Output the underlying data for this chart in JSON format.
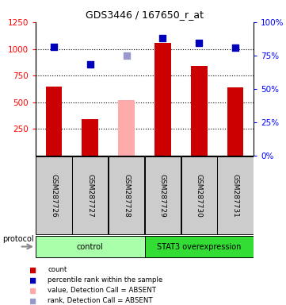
{
  "title": "GDS3446 / 167650_r_at",
  "samples": [
    "GSM287726",
    "GSM287727",
    "GSM287728",
    "GSM287729",
    "GSM287730",
    "GSM287731"
  ],
  "bar_values": [
    650,
    340,
    null,
    1060,
    840,
    640
  ],
  "bar_absent_values": [
    null,
    null,
    520,
    null,
    null,
    null
  ],
  "blue_squares_left": [
    1020,
    855,
    null,
    1100,
    1060,
    1010
  ],
  "blue_absent_left": [
    null,
    null,
    940,
    null,
    null,
    null
  ],
  "ylim_left": [
    0,
    1250
  ],
  "ylim_right": [
    0,
    100
  ],
  "yticks_left": [
    250,
    500,
    750,
    1000,
    1250
  ],
  "yticks_right": [
    0,
    25,
    50,
    75,
    100
  ],
  "dotted_levels": [
    250,
    500,
    750,
    1000
  ],
  "bar_color": "#cc0000",
  "bar_absent_color": "#ffaaaa",
  "blue_color": "#0000bb",
  "blue_absent_color": "#9999cc",
  "sample_bg_color": "#cccccc",
  "protocol_groups": [
    {
      "label": "control",
      "indices": [
        0,
        1,
        2
      ],
      "color": "#aaffaa"
    },
    {
      "label": "STAT3 overexpression",
      "indices": [
        3,
        4,
        5
      ],
      "color": "#33dd33"
    }
  ],
  "legend_items": [
    {
      "color": "#cc0000",
      "label": "count"
    },
    {
      "color": "#0000bb",
      "label": "percentile rank within the sample"
    },
    {
      "color": "#ffaaaa",
      "label": "value, Detection Call = ABSENT"
    },
    {
      "color": "#9999cc",
      "label": "rank, Detection Call = ABSENT"
    }
  ]
}
